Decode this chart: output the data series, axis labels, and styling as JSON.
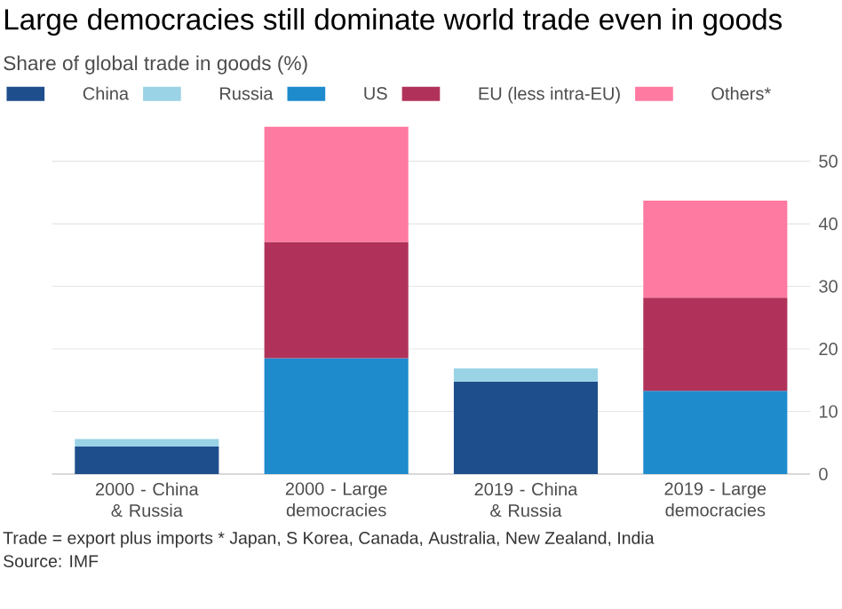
{
  "chart_data": {
    "type": "bar",
    "stacked": true,
    "title": "Large democracies still dominate world trade even in goods",
    "subtitle": "Share of global trade in goods (%)",
    "categories": [
      "2000 - China & Russia",
      "2000 - Large democracies",
      "2019 - China & Russia",
      "2019 - Large democracies"
    ],
    "series": [
      {
        "name": "China",
        "color": "#1f4e8c",
        "values": [
          4.4,
          null,
          14.8,
          null
        ]
      },
      {
        "name": "Russia",
        "color": "#9bd3e6",
        "values": [
          1.2,
          null,
          2.1,
          null
        ]
      },
      {
        "name": "US",
        "color": "#1e8bcd",
        "values": [
          null,
          18.5,
          null,
          13.3
        ]
      },
      {
        "name": "EU (less intra-EU)",
        "color": "#b0325a",
        "values": [
          null,
          18.6,
          null,
          14.9
        ]
      },
      {
        "name": "Others*",
        "color": "#ff7aa0",
        "values": [
          null,
          18.4,
          null,
          15.5
        ]
      }
    ],
    "ylim": [
      0,
      56
    ],
    "yticks": [
      0,
      10,
      20,
      30,
      40,
      50
    ],
    "grid": "y",
    "legend": "top",
    "annotations": [
      "Trade = export plus imports  * Japan, S Korea, Canada, Australia, New Zealand, India",
      "Source: IMF"
    ]
  }
}
